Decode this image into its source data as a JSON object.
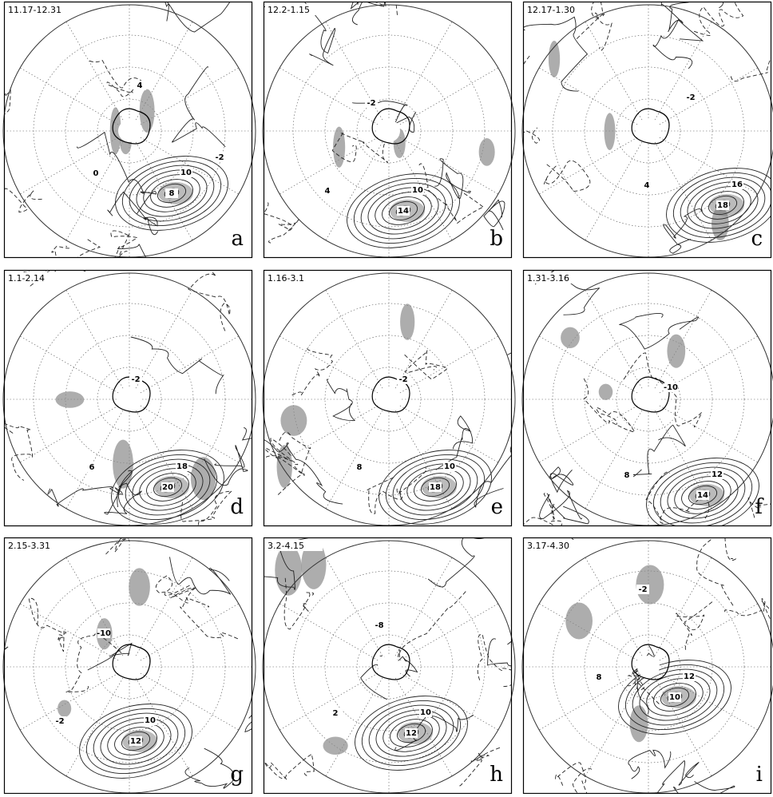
{
  "panels": [
    {
      "period": "11.17-12.31",
      "letter": "a",
      "contour_labels": [
        "8",
        "10",
        "4",
        "0",
        "-2"
      ]
    },
    {
      "period": "12.2-1.15",
      "letter": "b",
      "contour_labels": [
        "14",
        "10",
        "-2",
        "4"
      ]
    },
    {
      "period": "12.17-1.30",
      "letter": "c",
      "contour_labels": [
        "18",
        "16",
        "-2",
        "4"
      ]
    },
    {
      "period": "1.1-2.14",
      "letter": "d",
      "contour_labels": [
        "20",
        "18",
        "-2",
        "6"
      ]
    },
    {
      "period": "1.16-3.1",
      "letter": "e",
      "contour_labels": [
        "18",
        "10",
        "-2",
        "8"
      ]
    },
    {
      "period": "1.31-3.16",
      "letter": "f",
      "contour_labels": [
        "14",
        "12",
        "-10",
        "8"
      ]
    },
    {
      "period": "2.15-3.31",
      "letter": "g",
      "contour_labels": [
        "12",
        "10",
        "-10",
        "-2"
      ]
    },
    {
      "period": "3.2-4.15",
      "letter": "h",
      "contour_labels": [
        "12",
        "10",
        "-8",
        "2"
      ]
    },
    {
      "period": "3.17-4.30",
      "letter": "i",
      "contour_labels": [
        "10",
        "12",
        "-2",
        "8"
      ]
    }
  ]
}
